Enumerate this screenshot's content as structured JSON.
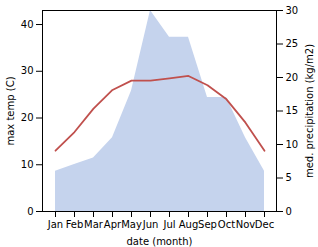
{
  "chart_data": {
    "type": "line",
    "categories": [
      "Jan",
      "Feb",
      "Mar",
      "Apr",
      "May",
      "Jun",
      "Jul",
      "Aug",
      "Sep",
      "Oct",
      "Nov",
      "Dec"
    ],
    "xlabel": "date (month)",
    "ylabel": "max temp (C)",
    "y2label": "med. precipitation (kg/m2)",
    "series": [
      {
        "type": "area",
        "axis": "y2",
        "color": "#c5d3ed",
        "values": [
          6,
          7,
          8,
          11,
          18,
          30,
          26,
          26,
          17,
          17,
          11,
          6
        ]
      },
      {
        "type": "line",
        "color": "#c0504d",
        "values": [
          13,
          17,
          22,
          26,
          28,
          28,
          28.5,
          29,
          27,
          24,
          19,
          13
        ]
      }
    ],
    "ylim": [
      0,
      43
    ],
    "yticks": [
      0,
      10,
      20,
      30,
      40
    ],
    "y2lim": [
      0,
      30
    ],
    "y2ticks": [
      0,
      5,
      10,
      15,
      20,
      25,
      30
    ],
    "grid": false
  }
}
